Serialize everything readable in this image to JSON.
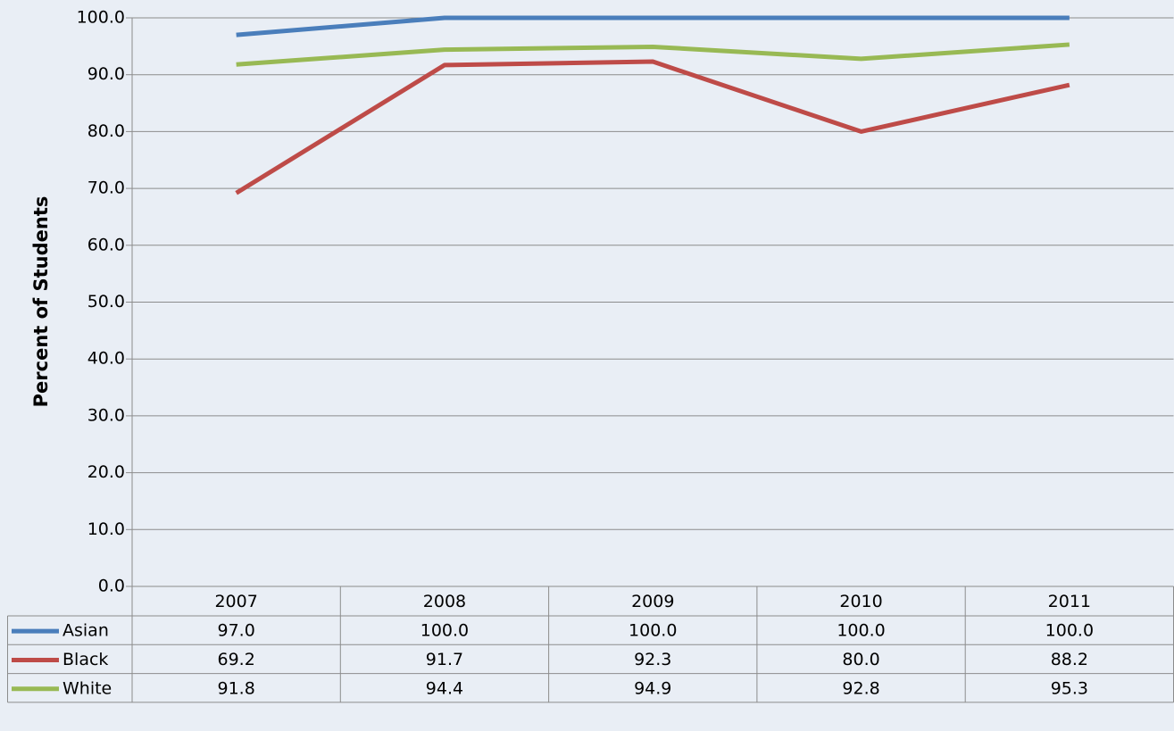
{
  "chart_data": {
    "type": "line",
    "y_label": "Percent of Students",
    "categories": [
      "2007",
      "2008",
      "2009",
      "2010",
      "2011"
    ],
    "series": [
      {
        "name": "Asian",
        "color": "#4a7ebb",
        "values": [
          97.0,
          100.0,
          100.0,
          100.0,
          100.0
        ],
        "value_labels": [
          "97.0",
          "100.0",
          "100.0",
          "100.0",
          "100.0"
        ]
      },
      {
        "name": "Black",
        "color": "#be4b48",
        "values": [
          69.2,
          91.7,
          92.3,
          80.0,
          88.2
        ],
        "value_labels": [
          "69.2",
          "91.7",
          "92.3",
          "80.0",
          "88.2"
        ]
      },
      {
        "name": "White",
        "color": "#98b954",
        "values": [
          91.8,
          94.4,
          94.9,
          92.8,
          95.3
        ],
        "value_labels": [
          "91.8",
          "94.4",
          "94.9",
          "92.8",
          "95.3"
        ]
      }
    ],
    "ylim": [
      0,
      100
    ],
    "yticks": [
      {
        "value": 0,
        "label": "0.0"
      },
      {
        "value": 10,
        "label": "10.0"
      },
      {
        "value": 20,
        "label": "20.0"
      },
      {
        "value": 30,
        "label": "30.0"
      },
      {
        "value": 40,
        "label": "40.0"
      },
      {
        "value": 50,
        "label": "50.0"
      },
      {
        "value": 60,
        "label": "60.0"
      },
      {
        "value": 70,
        "label": "70.0"
      },
      {
        "value": 80,
        "label": "80.0"
      },
      {
        "value": 90,
        "label": "90.0"
      },
      {
        "value": 100,
        "label": "100.0"
      }
    ],
    "grid": true,
    "data_table": true
  }
}
